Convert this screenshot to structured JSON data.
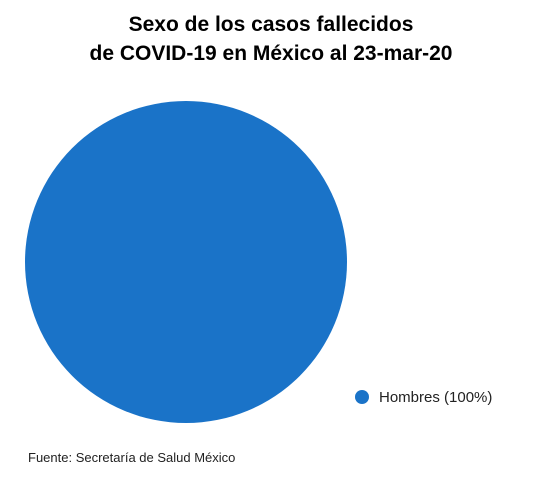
{
  "chart_data": {
    "type": "pie",
    "title_lines": [
      "Sexo de los casos fallecidos",
      "de COVID-19 en México al 23-mar-20"
    ],
    "slices": [
      {
        "label": "Hombres (100%)",
        "value": 100,
        "color": "#1a73c8"
      }
    ],
    "legend_position": "bottom-right",
    "source": "Fuente: Secretaría de Salud México"
  }
}
